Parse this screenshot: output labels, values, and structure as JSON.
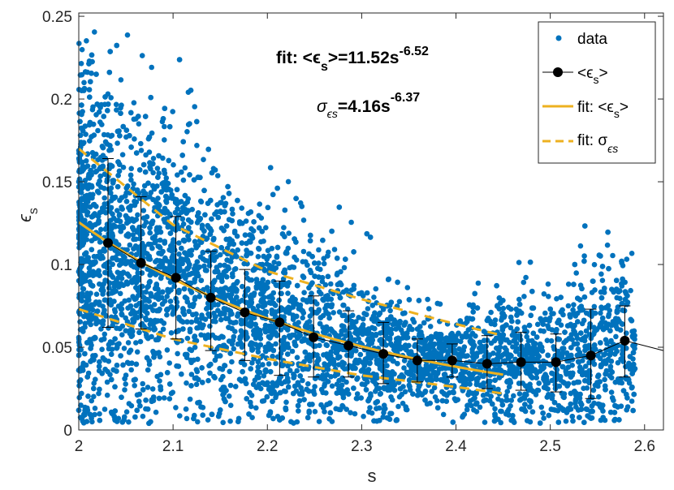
{
  "chart_data": {
    "type": "scatter",
    "xlabel": "s",
    "ylabel": "ϵs",
    "xlim": [
      2.0,
      2.62
    ],
    "ylim": [
      0.0,
      0.252
    ],
    "xticks": [
      2.0,
      2.1,
      2.2,
      2.3,
      2.4,
      2.5,
      2.6
    ],
    "xtick_labels": [
      "2",
      "2.1",
      "2.2",
      "2.3",
      "2.4",
      "2.5",
      "2.6"
    ],
    "yticks": [
      0.0,
      0.05,
      0.1,
      0.15,
      0.2,
      0.25
    ],
    "ytick_labels": [
      "0",
      "0.05",
      "0.1",
      "0.15",
      "0.2",
      "0.25"
    ],
    "colors": {
      "data": "#0072BD",
      "fit": "#EDB120",
      "mean": "#000000",
      "axes": "#262626"
    },
    "annotations": {
      "fit_mean": {
        "prefix": "fit: <ϵ",
        "sub": "s",
        "mid": ">=11.52s",
        "sup": "-6.52"
      },
      "fit_sigma": {
        "sym": "σ",
        "sub": "ϵs",
        "mid": "=4.16s",
        "sup": "-6.37"
      }
    },
    "legend": {
      "location": "top-right",
      "data_label": "data",
      "mean_label": {
        "prefix": "<ϵ",
        "sub": "s",
        "suffix": ">"
      },
      "fit_mean_label": {
        "prefix": "fit: <ϵ",
        "sub": "s",
        "suffix": ">"
      },
      "fit_sigma_label": {
        "prefix": "fit: σ",
        "sub": "ϵs"
      }
    },
    "scatter": {
      "name": "data",
      "n_points": 6000,
      "x_range": [
        2.0,
        2.59
      ],
      "note": "dense cloud of data points; density decreases with s"
    },
    "mean": {
      "name": "<ϵs>",
      "x": [
        2.031,
        2.066,
        2.103,
        2.14,
        2.176,
        2.213,
        2.249,
        2.286,
        2.323,
        2.359,
        2.396,
        2.433,
        2.469,
        2.506,
        2.543,
        2.579,
        2.62
      ],
      "y": [
        0.113,
        0.101,
        0.092,
        0.08,
        0.071,
        0.065,
        0.056,
        0.051,
        0.046,
        0.042,
        0.042,
        0.04,
        0.041,
        0.041,
        0.045,
        0.054,
        0.048
      ],
      "err_low": [
        0.051,
        0.04,
        0.037,
        0.032,
        0.029,
        0.032,
        0.024,
        0.019,
        0.018,
        0.013,
        0.01,
        0.015,
        0.017,
        0.018,
        0.026,
        0.022,
        0
      ],
      "err_high": [
        0.051,
        0.04,
        0.037,
        0.028,
        0.026,
        0.025,
        0.025,
        0.021,
        0.019,
        0.013,
        0.01,
        0.017,
        0.018,
        0.017,
        0.028,
        0.021,
        0
      ],
      "marker_count": 16
    },
    "fit_mean": {
      "name": "fit: <ϵs>",
      "coef": 11.52,
      "exponent": -6.52,
      "x_range": [
        2.0,
        2.45
      ]
    },
    "fit_sigma_bands": {
      "name": "fit: σϵs",
      "upper": {
        "x": [
          2.0,
          2.1,
          2.2,
          2.3,
          2.4,
          2.45
        ],
        "y": [
          0.17,
          0.124,
          0.096,
          0.079,
          0.064,
          0.057
        ]
      },
      "lower": {
        "x": [
          2.0,
          2.1,
          2.2,
          2.3,
          2.4,
          2.45
        ],
        "y": [
          0.073,
          0.055,
          0.043,
          0.033,
          0.026,
          0.022
        ]
      }
    }
  }
}
